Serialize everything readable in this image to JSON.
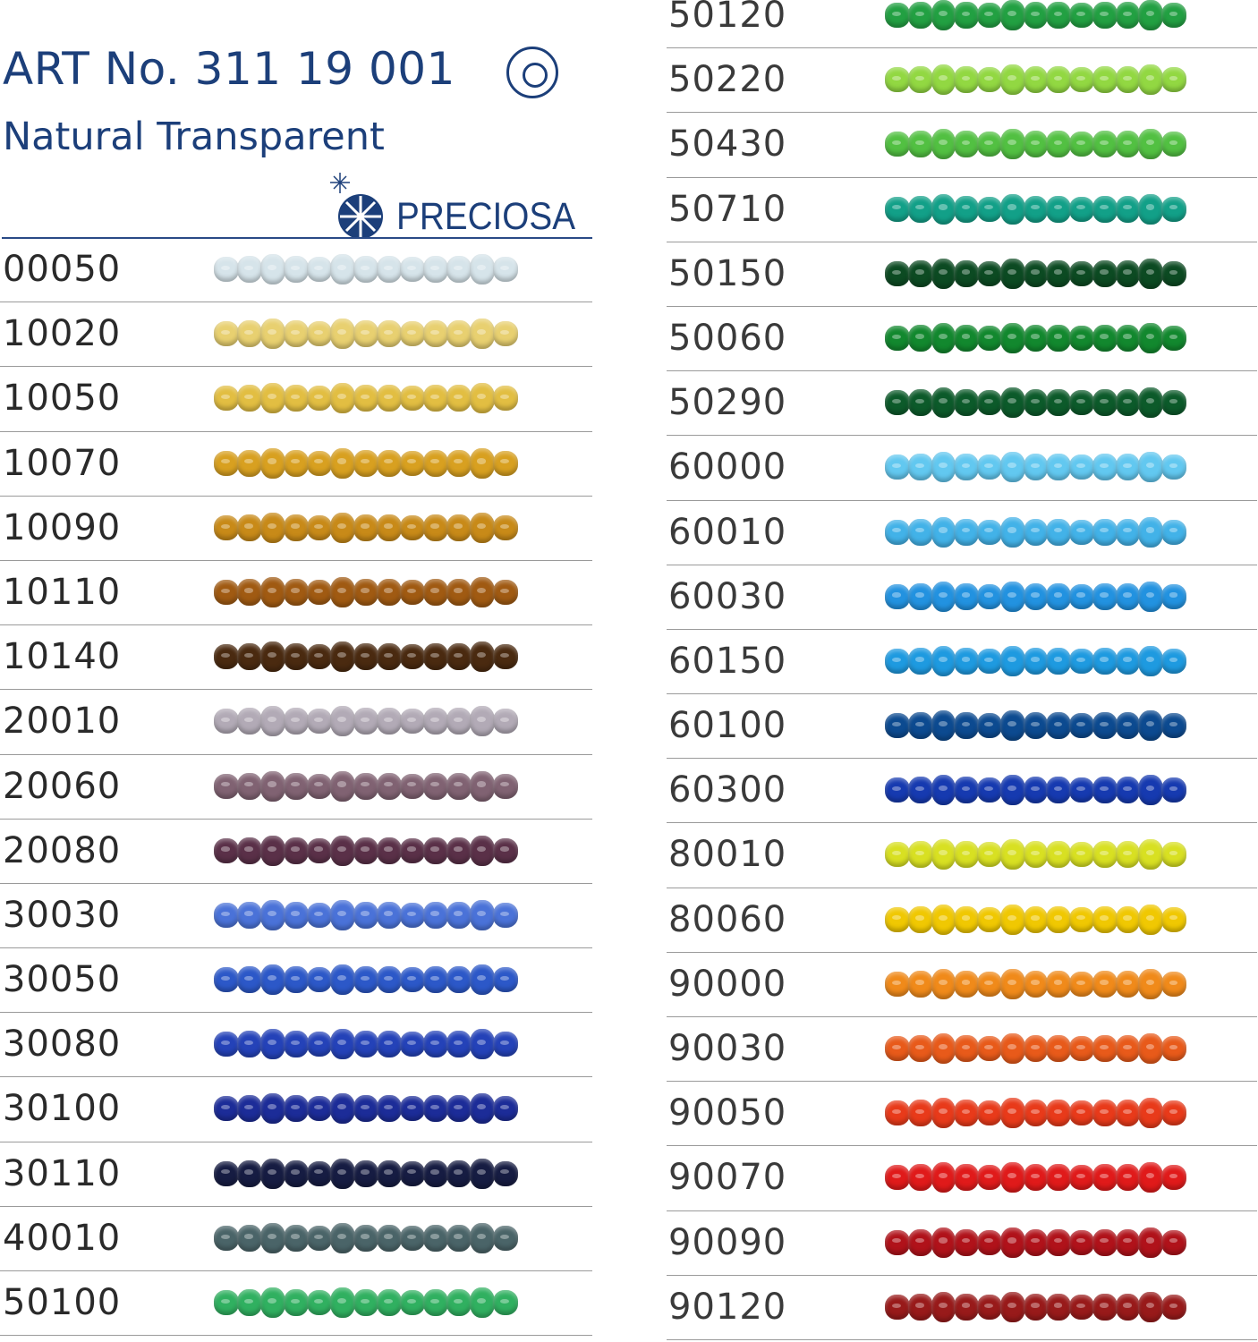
{
  "header": {
    "title": "ART No. 311 19 001",
    "subtitle": "Natural Transparent",
    "symbol_icon": "double-circle-icon",
    "brand": "PRECIOSA",
    "brand_color": "#1c3f7a"
  },
  "left_column": [
    {
      "code": "00050",
      "color": "#d6e4ea"
    },
    {
      "code": "10020",
      "color": "#e8d070"
    },
    {
      "code": "10050",
      "color": "#e2be42"
    },
    {
      "code": "10070",
      "color": "#d8a020"
    },
    {
      "code": "10090",
      "color": "#c88a18"
    },
    {
      "code": "10110",
      "color": "#a05a12"
    },
    {
      "code": "10140",
      "color": "#4a2a10"
    },
    {
      "code": "20010",
      "color": "#b2aab6"
    },
    {
      "code": "20060",
      "color": "#806272"
    },
    {
      "code": "20080",
      "color": "#5a3048"
    },
    {
      "code": "30030",
      "color": "#4a72d8"
    },
    {
      "code": "30050",
      "color": "#2c58c8"
    },
    {
      "code": "30080",
      "color": "#2442b8"
    },
    {
      "code": "30100",
      "color": "#1c2c98"
    },
    {
      "code": "30110",
      "color": "#161c42"
    },
    {
      "code": "40010",
      "color": "#4a6468"
    },
    {
      "code": "50100",
      "color": "#30b060"
    }
  ],
  "right_column": [
    {
      "code": "50120",
      "color": "#22a042"
    },
    {
      "code": "50220",
      "color": "#92d842"
    },
    {
      "code": "50430",
      "color": "#52c042"
    },
    {
      "code": "50710",
      "color": "#12a088"
    },
    {
      "code": "50150",
      "color": "#0c4a22"
    },
    {
      "code": "50060",
      "color": "#12882e"
    },
    {
      "code": "50290",
      "color": "#0c5a2a"
    },
    {
      "code": "60000",
      "color": "#62c8f0"
    },
    {
      "code": "60010",
      "color": "#42b2e8"
    },
    {
      "code": "60030",
      "color": "#2292e0"
    },
    {
      "code": "60150",
      "color": "#1e9ae0"
    },
    {
      "code": "60100",
      "color": "#0c4a90"
    },
    {
      "code": "60300",
      "color": "#163ab0"
    },
    {
      "code": "80010",
      "color": "#d8e022"
    },
    {
      "code": "80060",
      "color": "#f0c802"
    },
    {
      "code": "90000",
      "color": "#f08a1a"
    },
    {
      "code": "90030",
      "color": "#e85a1a"
    },
    {
      "code": "90050",
      "color": "#e83a1a"
    },
    {
      "code": "90070",
      "color": "#e01a1a"
    },
    {
      "code": "90090",
      "color": "#b0121a"
    },
    {
      "code": "90120",
      "color": "#981a1a"
    }
  ]
}
